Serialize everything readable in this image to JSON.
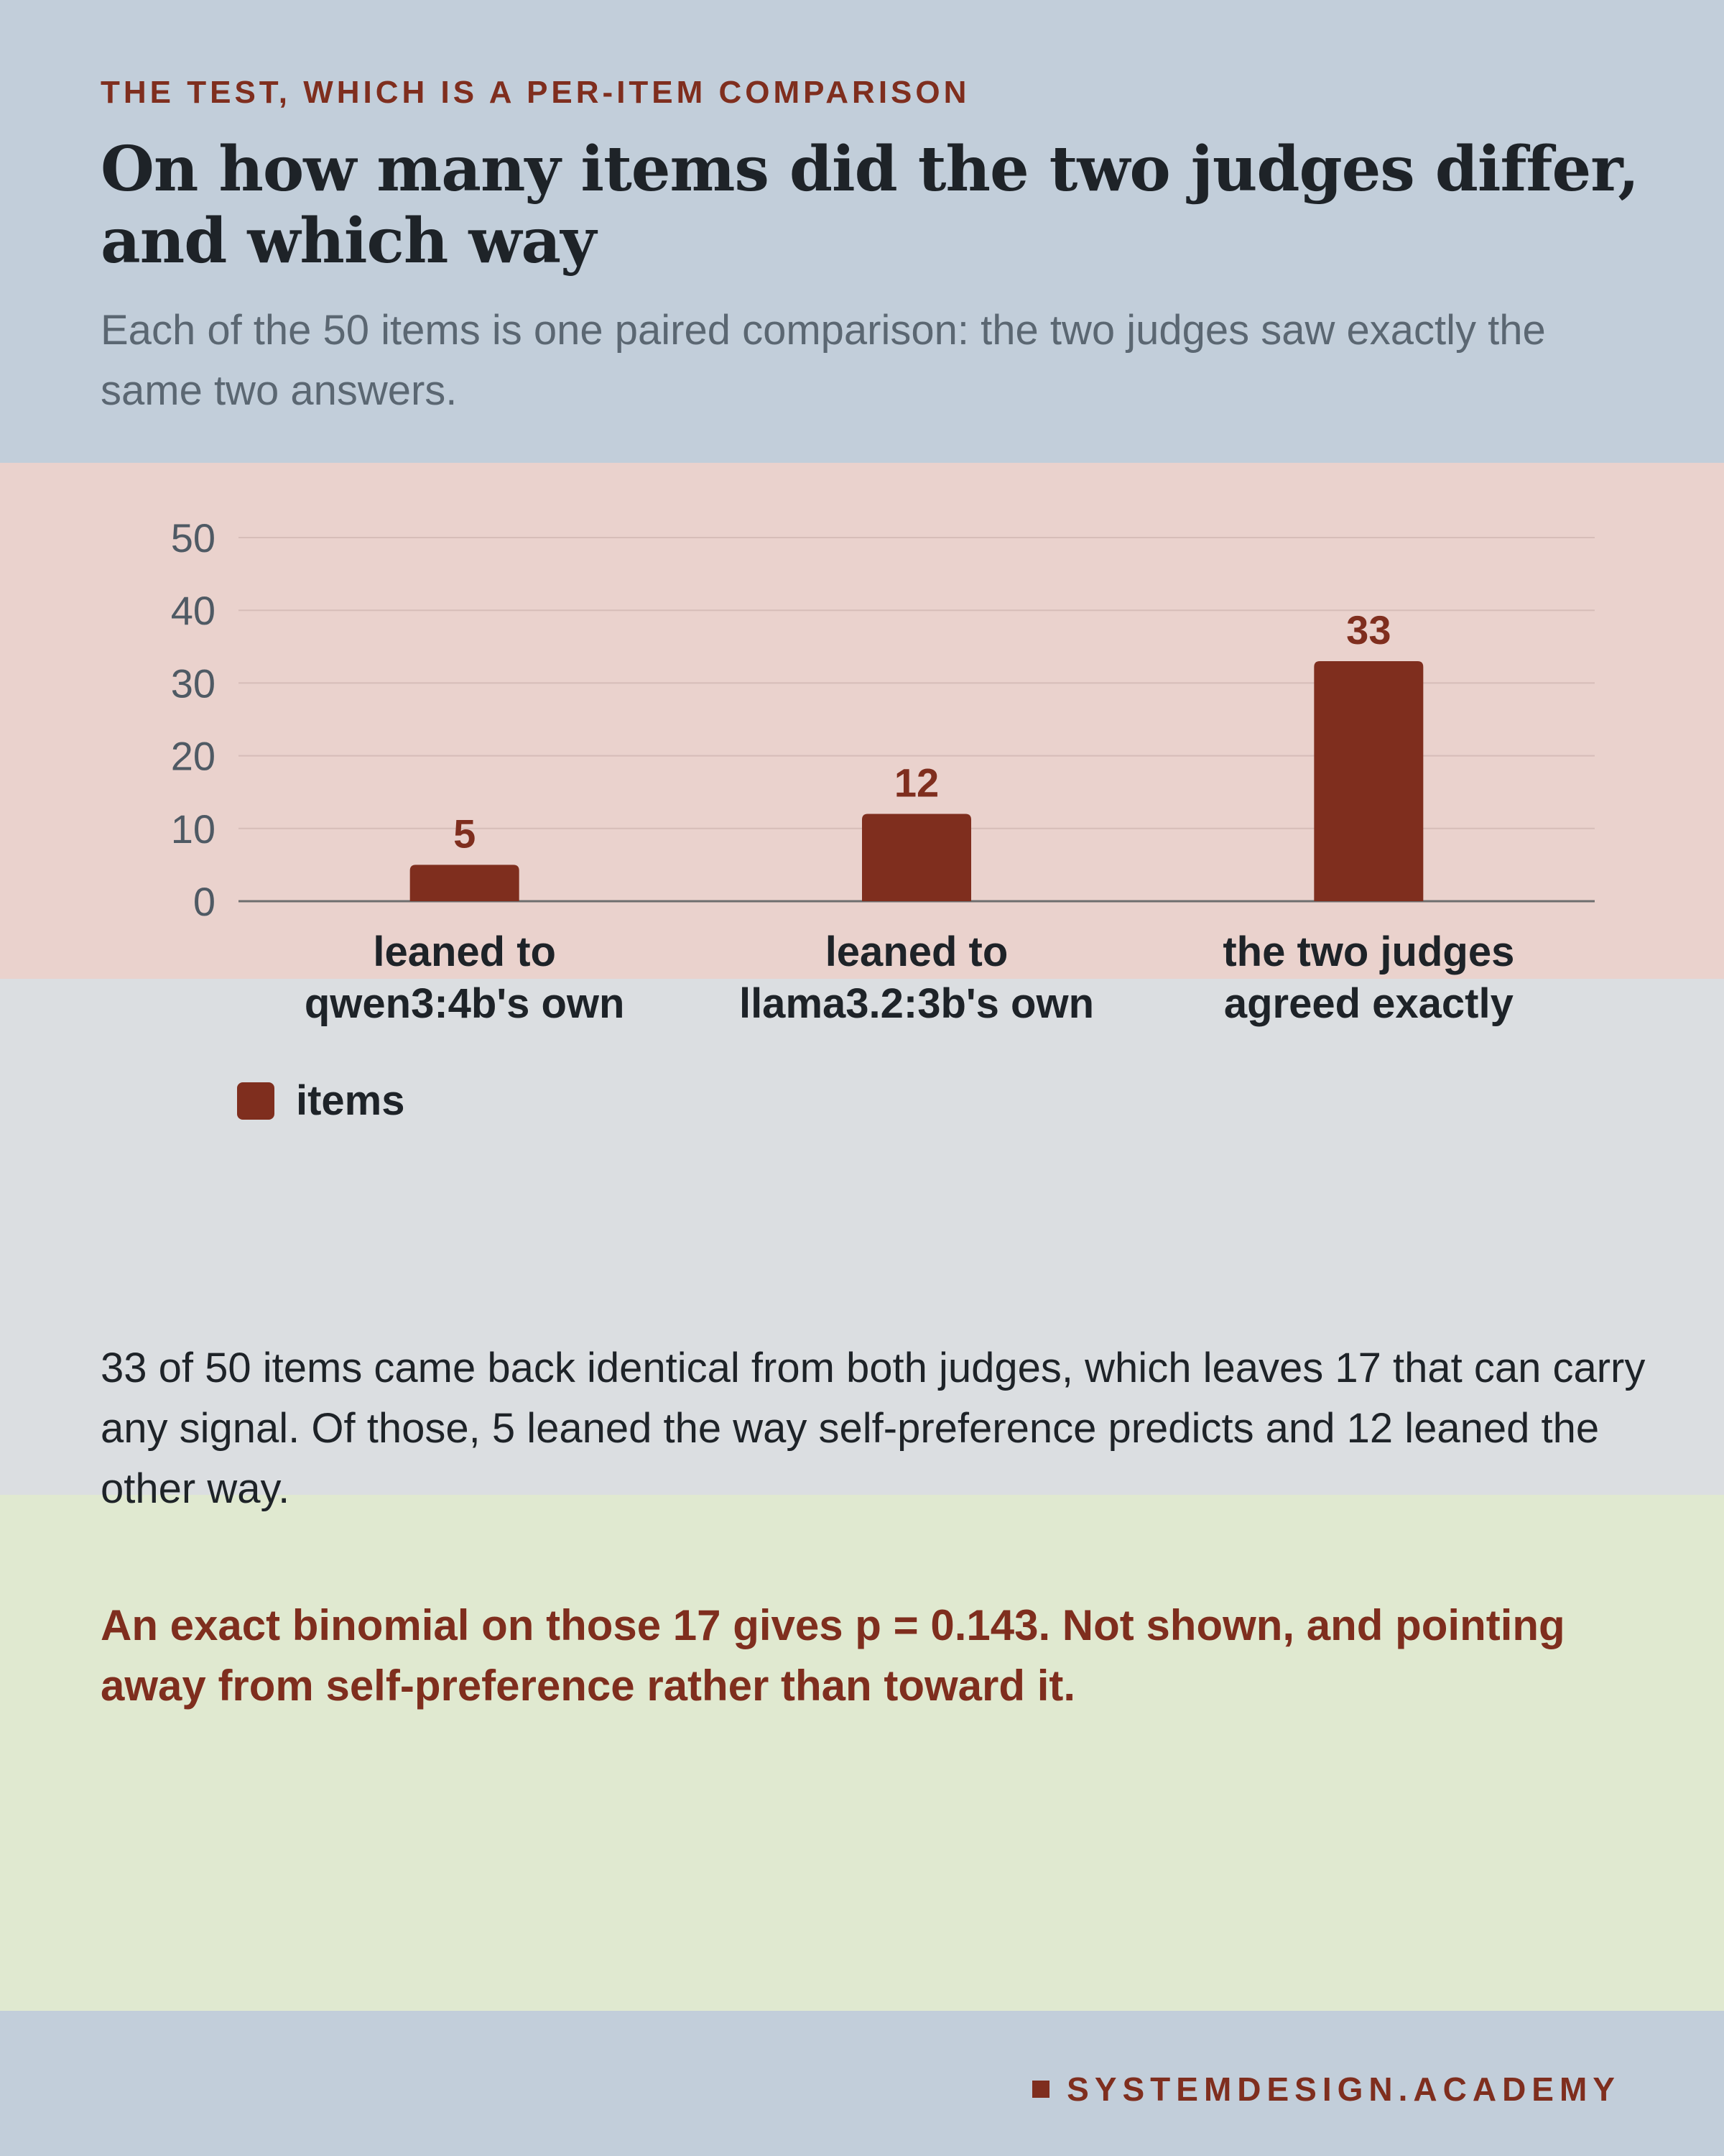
{
  "header": {
    "eyebrow": "THE TEST, WHICH IS A PER-ITEM COMPARISON",
    "title": "On how many items did the two judges differ, and which way",
    "subtitle": "Each of the 50 items is one paired comparison: the two judges saw exactly the same two answers."
  },
  "chart_data": {
    "type": "bar",
    "categories": [
      [
        "leaned to",
        "qwen3:4b's own"
      ],
      [
        "leaned to",
        "llama3.2:3b's own"
      ],
      [
        "the two judges",
        "agreed exactly"
      ]
    ],
    "series": [
      {
        "name": "items",
        "values": [
          5,
          12,
          33
        ],
        "color": "#7F2E1E"
      }
    ],
    "ylim": [
      0,
      50
    ],
    "yticks": [
      0,
      10,
      20,
      30,
      40,
      50
    ],
    "grid": true,
    "data_labels": true,
    "legend_placement": "bottom-left"
  },
  "legend": {
    "label": "items"
  },
  "body": {
    "paragraph": "33 of 50 items came back identical from both judges, which leaves 17 that can carry any signal. Of those, 5 leaned the way self-preference predicts and 12 leaned the other way.",
    "conclusion": "An exact binomial on those 17 gives p = 0.143. Not shown, and pointing away from self-preference rather than toward it."
  },
  "footer": {
    "brand": "SYSTEMDESIGN.ACADEMY"
  },
  "colors": {
    "accent": "#7F2E1E",
    "header_bg": "#C2CEDA",
    "chart_bg": "#EAD2CD",
    "body_bg": "#DBDEE1",
    "conclusion_bg": "#E0E9D0"
  }
}
